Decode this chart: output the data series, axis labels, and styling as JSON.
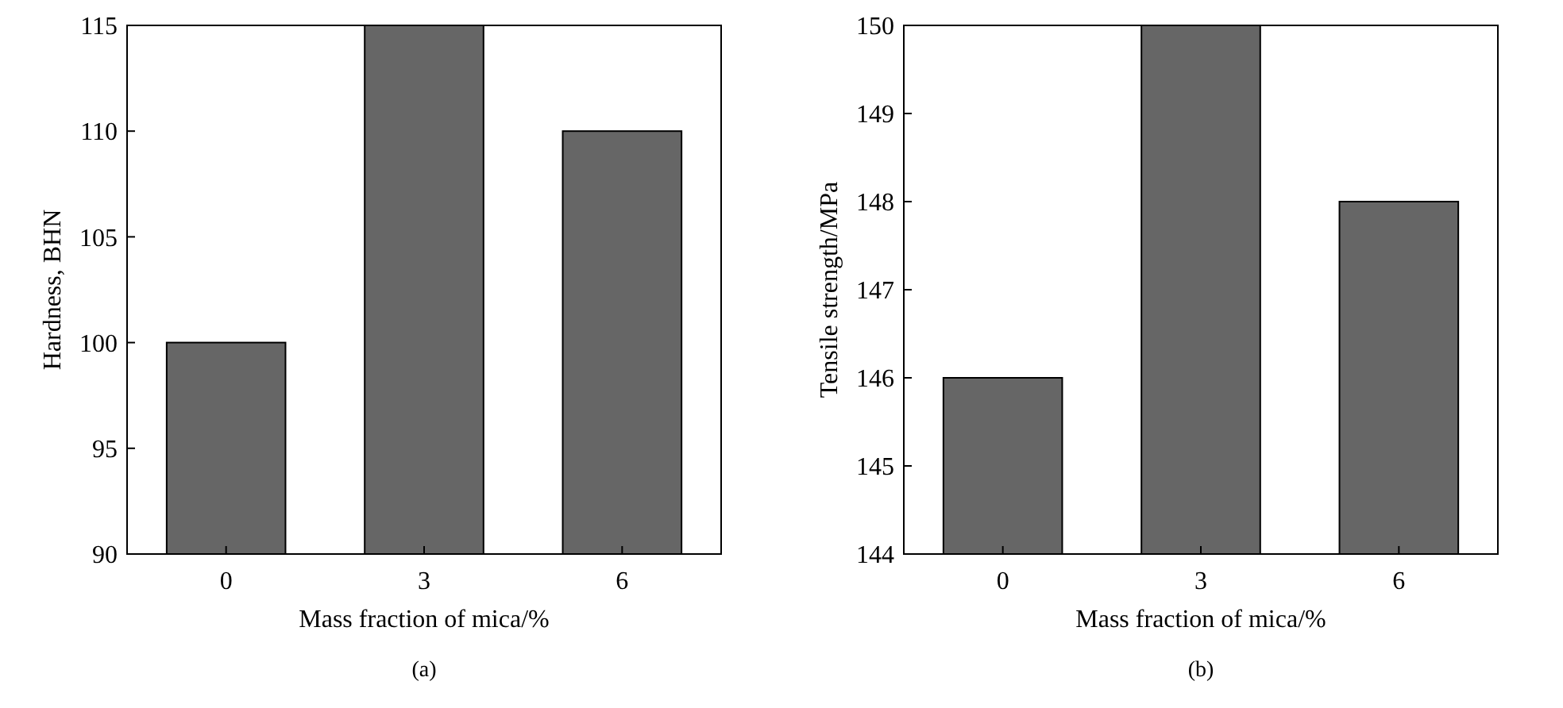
{
  "chart_data": [
    {
      "type": "bar",
      "xlabel": "Mass fraction of mica/%",
      "ylabel": "Hardness, BHN",
      "categories": [
        "0",
        "3",
        "6"
      ],
      "values": [
        100,
        115,
        110
      ],
      "color": "#666666",
      "ylim": [
        90,
        115
      ],
      "yticks": [
        90,
        95,
        100,
        105,
        110,
        115
      ],
      "annotations": [
        "(a)"
      ]
    },
    {
      "type": "bar",
      "xlabel": "Mass fraction of mica/%",
      "ylabel": "Tensile strength/MPa",
      "categories": [
        "0",
        "3",
        "6"
      ],
      "values": [
        146,
        150,
        148
      ],
      "color": "#666666",
      "ylim": [
        144,
        150
      ],
      "yticks": [
        144,
        145,
        146,
        147,
        148,
        149,
        150
      ],
      "annotations": [
        "(b)"
      ]
    }
  ]
}
